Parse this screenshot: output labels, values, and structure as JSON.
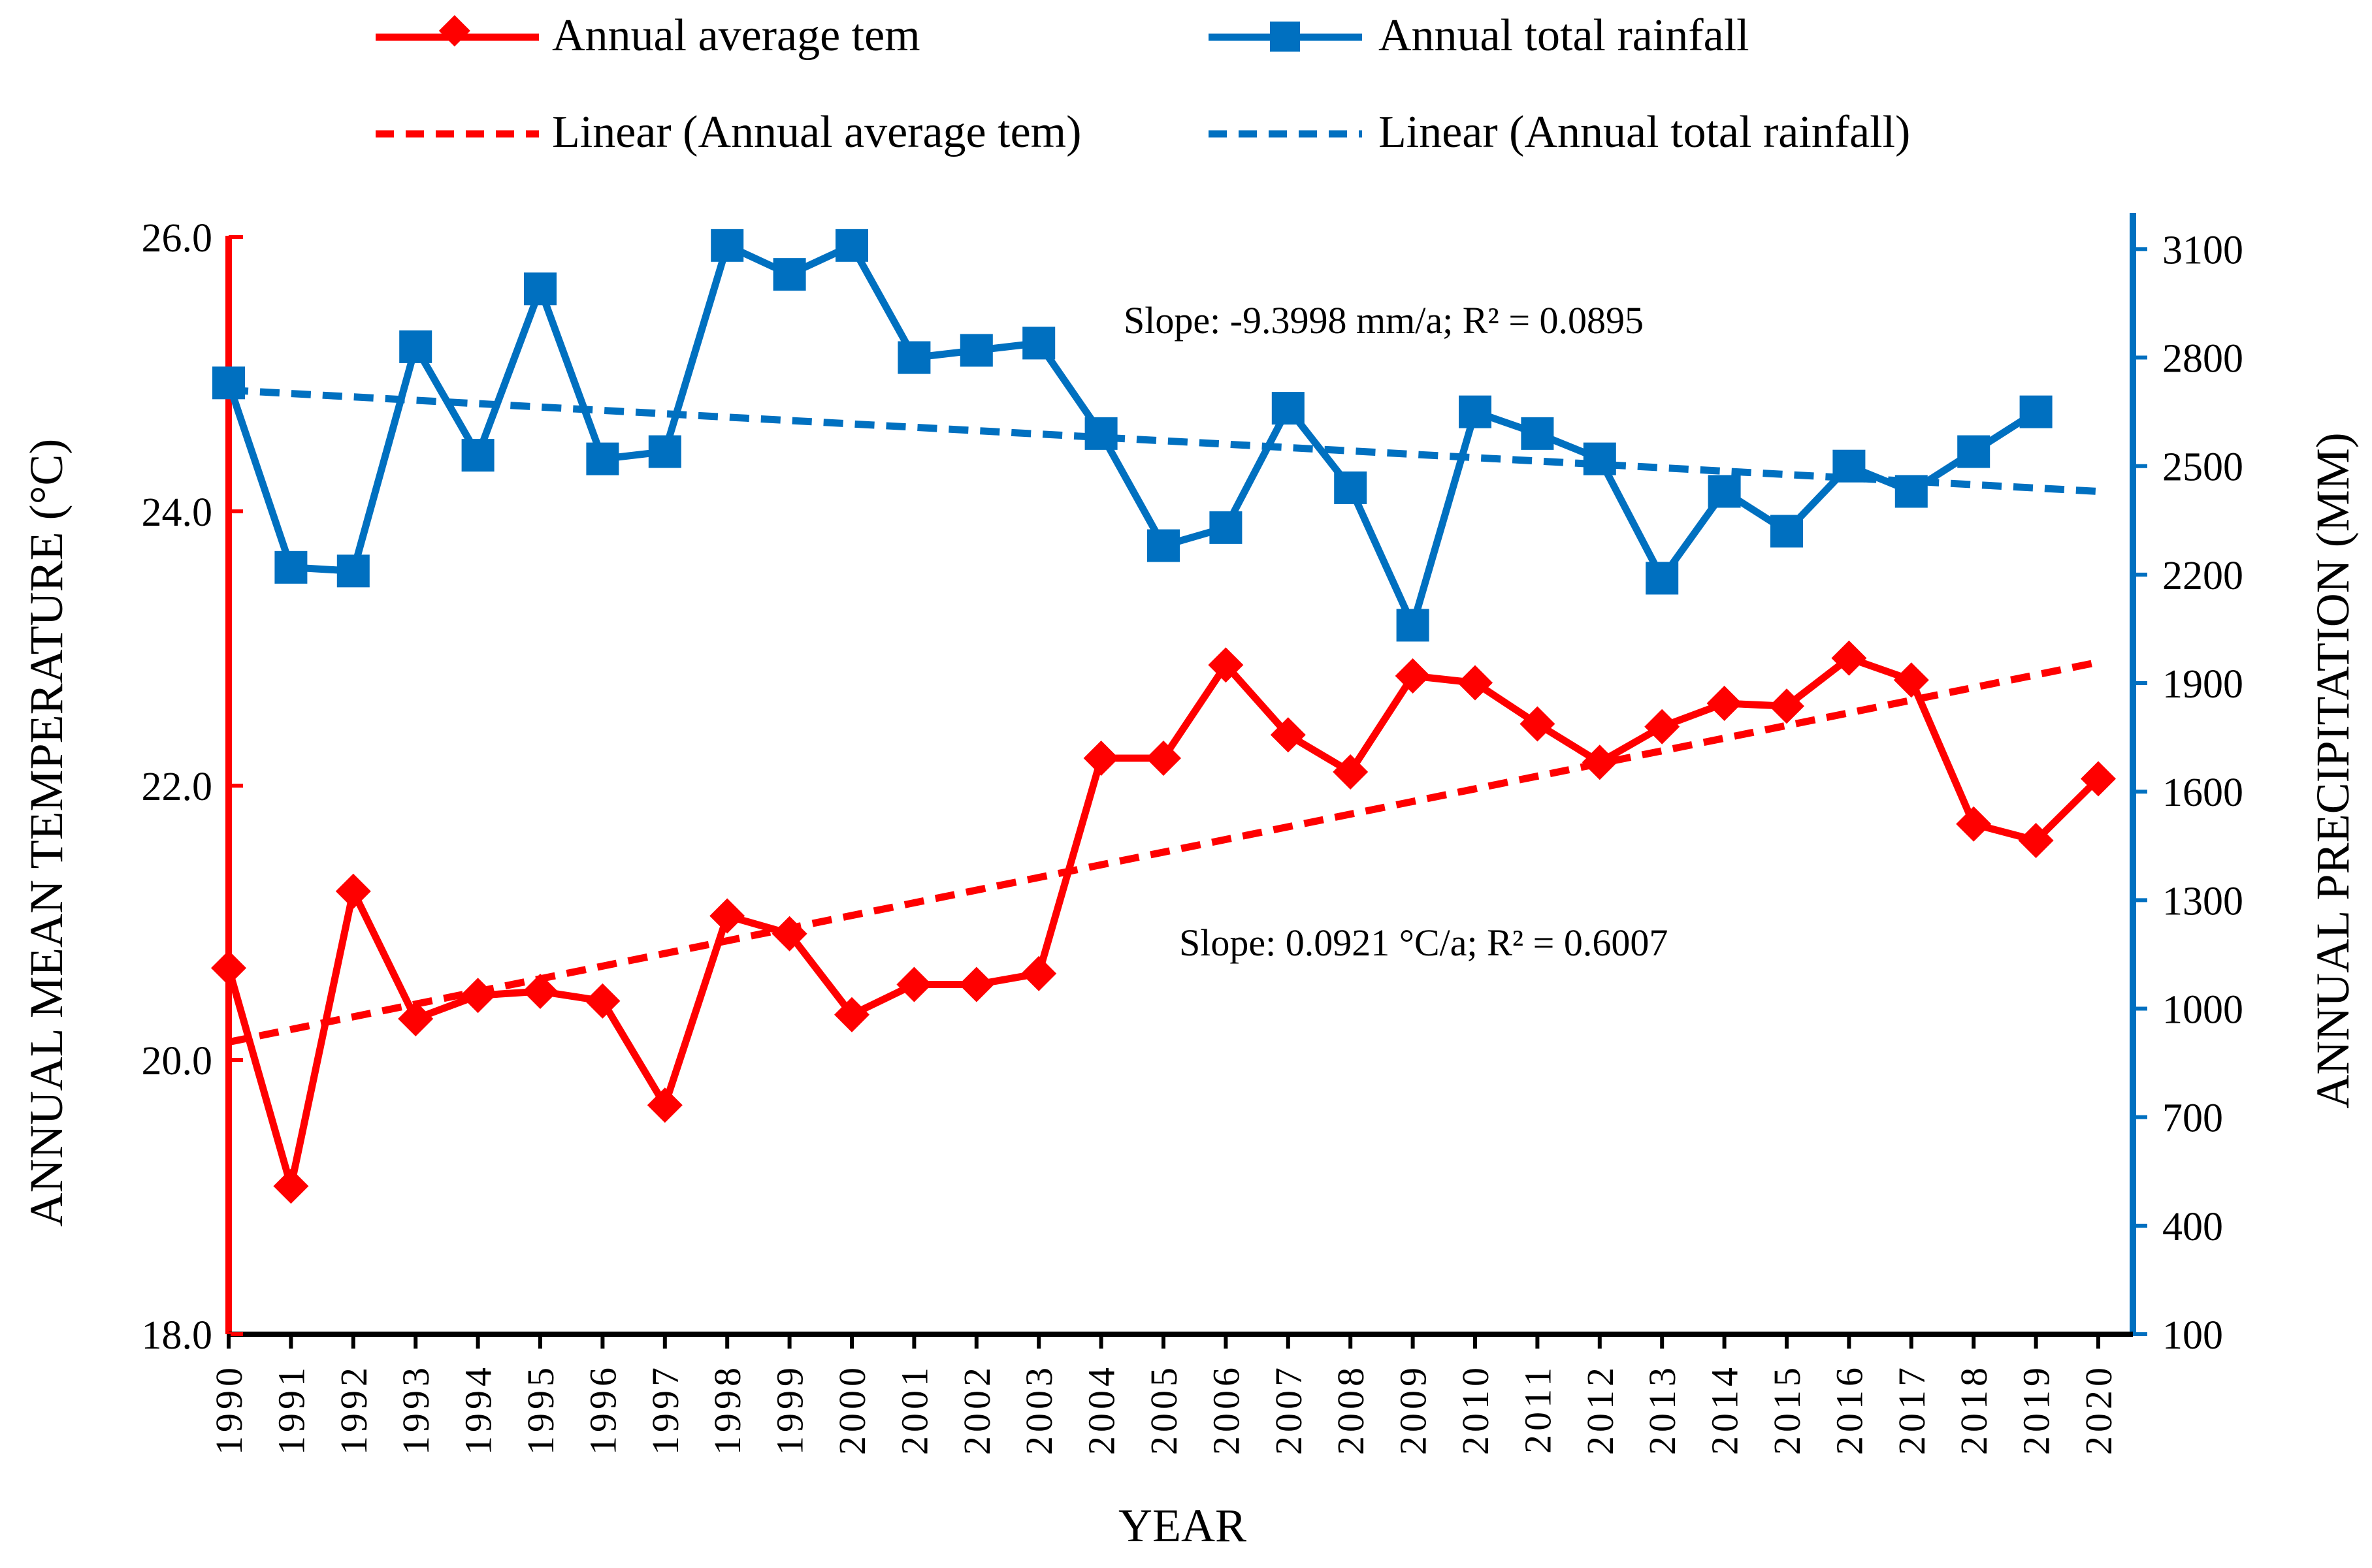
{
  "chart_data": {
    "type": "line",
    "xlabel": "YEAR",
    "ylabel_left": "ANNUAL MEAN TEMPERATURE (°C)",
    "ylabel_right": "ANNUAL PRECIPITATION (MM)",
    "categories": [
      "1990",
      "1991",
      "1992",
      "1993",
      "1994",
      "1995",
      "1996",
      "1997",
      "1998",
      "1999",
      "2000",
      "2001",
      "2002",
      "2003",
      "2004",
      "2005",
      "2006",
      "2007",
      "2008",
      "2009",
      "2010",
      "2011",
      "2012",
      "2013",
      "2014",
      "2015",
      "2016",
      "2017",
      "2018",
      "2019",
      "2020"
    ],
    "y_left": {
      "min": 18.0,
      "max": 26.0,
      "ticks": [
        "18.0",
        "20.0",
        "22.0",
        "24.0",
        "26.0"
      ]
    },
    "y_right": {
      "min": 100,
      "max": 3200,
      "ticks": [
        "100",
        "400",
        "700",
        "1000",
        "1300",
        "1600",
        "1900",
        "2200",
        "2500",
        "2800",
        "3100"
      ]
    },
    "legend_position": "top",
    "series": [
      {
        "name": "Annual average tem",
        "axis": "left",
        "color": "#ff0000",
        "marker": "diamond",
        "values": [
          20.67,
          19.08,
          21.23,
          20.3,
          20.47,
          20.5,
          20.43,
          19.67,
          21.05,
          20.92,
          20.33,
          20.55,
          20.55,
          20.63,
          22.2,
          22.2,
          22.88,
          22.37,
          22.1,
          22.8,
          22.75,
          22.45,
          22.17,
          22.43,
          22.6,
          22.58,
          22.93,
          22.77,
          21.72,
          21.6,
          22.05
        ]
      },
      {
        "name": "Annual total rainfall",
        "axis": "right",
        "color": "#0070c0",
        "marker": "square",
        "values": [
          2730,
          2220,
          2210,
          2830,
          2530,
          2990,
          2520,
          2540,
          3110,
          3030,
          3110,
          2800,
          2820,
          2840,
          2590,
          2280,
          2330,
          2660,
          2440,
          2060,
          2650,
          2590,
          2520,
          2190,
          2430,
          2320,
          2500,
          2430,
          2540,
          2650,
          null
        ]
      }
    ],
    "trendlines": [
      {
        "name": "Linear (Annual average tem)",
        "axis": "left",
        "color": "#ff0000",
        "start": 20.13,
        "end": 22.9
      },
      {
        "name": "Linear (Annual total rainfall)",
        "axis": "right",
        "color": "#0070c0",
        "start": 2710,
        "end": 2430
      }
    ],
    "annotations": {
      "rainfall_trend": "Slope: -9.3998 mm/a; R² = 0.0895",
      "temperature_trend": "Slope: 0.0921 °C/a; R² = 0.6007"
    }
  }
}
